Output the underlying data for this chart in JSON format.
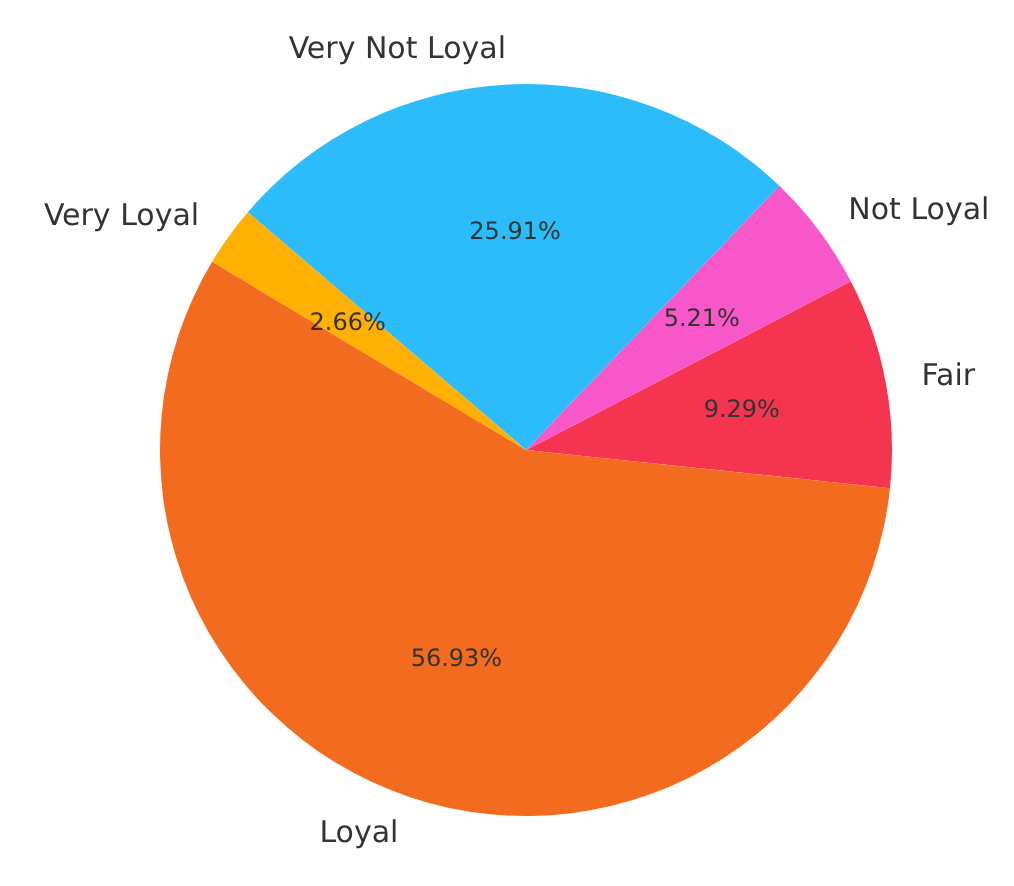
{
  "chart_data": {
    "type": "pie",
    "categories": [
      "Fair",
      "Not Loyal",
      "Very Not Loyal",
      "Very Loyal",
      "Loyal"
    ],
    "values": [
      9.29,
      5.21,
      25.91,
      2.66,
      56.93
    ],
    "value_labels": [
      "9.29%",
      "5.21%",
      "25.91%",
      "2.66%",
      "56.93%"
    ],
    "colors": [
      "#f5344f",
      "#f757c8",
      "#2bbcf9",
      "#ffb000",
      "#f26b1f"
    ],
    "legend": false
  }
}
